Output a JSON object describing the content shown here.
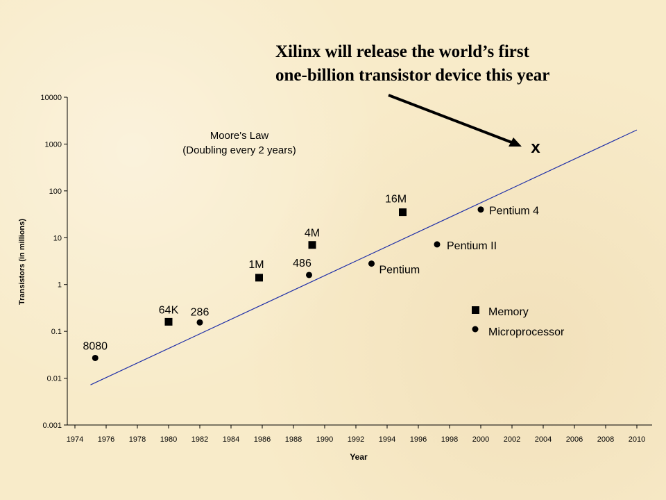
{
  "headline": {
    "line1": "Xilinx will release the  world’s first",
    "line2": "one-billion transistor device this year"
  },
  "annotation_marker": "x",
  "chart_data": {
    "type": "scatter",
    "title": "Moore's Law",
    "subtitle": "(Doubling every 2 years)",
    "xlabel": "Year",
    "ylabel": "Transistors (in millions)",
    "y_scale": "log",
    "ylim": [
      0.001,
      10000
    ],
    "xlim": [
      1974,
      2010
    ],
    "x_ticks": [
      "1974",
      "1976",
      "1978",
      "1980",
      "1982",
      "1984",
      "1986",
      "1988",
      "1990",
      "1992",
      "1994",
      "1996",
      "1998",
      "2000",
      "2002",
      "2004",
      "2006",
      "2008",
      "2010"
    ],
    "y_ticks": [
      "0.001",
      "0.01",
      "0.1",
      "1",
      "10",
      "100",
      "1000",
      "10000"
    ],
    "trend_line": {
      "x": [
        1975,
        2010
      ],
      "y": [
        0.0072,
        2000
      ]
    },
    "series": [
      {
        "name": "Memory",
        "marker": "square",
        "points": [
          {
            "label": "64K",
            "x": 1980,
            "y": 0.16
          },
          {
            "label": "1M",
            "x": 1985.8,
            "y": 1.4
          },
          {
            "label": "4M",
            "x": 1989.2,
            "y": 7
          },
          {
            "label": "16M",
            "x": 1995,
            "y": 35
          }
        ]
      },
      {
        "name": "Microprocessor",
        "marker": "circle",
        "points": [
          {
            "label": "8080",
            "x": 1975.3,
            "y": 0.027
          },
          {
            "label": "286",
            "x": 1982,
            "y": 0.155
          },
          {
            "label": "486",
            "x": 1989,
            "y": 1.6
          },
          {
            "label": "Pentium",
            "x": 1993,
            "y": 2.8
          },
          {
            "label": "Pentium II",
            "x": 1997.2,
            "y": 7.2
          },
          {
            "label": "Pentium 4",
            "x": 2000,
            "y": 40
          }
        ]
      }
    ],
    "projection": {
      "label": "x",
      "x": 2002.8,
      "y": 1000
    },
    "legend": {
      "position": "lower-right",
      "entries": [
        "Memory",
        "Microprocessor"
      ]
    },
    "grid": false
  }
}
